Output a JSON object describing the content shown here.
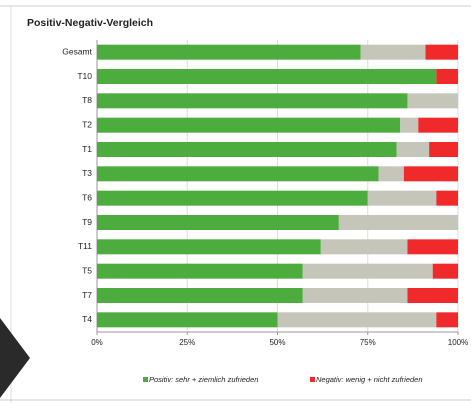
{
  "chart_data": {
    "type": "stacked-hbar",
    "title": "Positiv-Negativ-Vergleich",
    "categories": [
      "Gesamt",
      "T10",
      "T8",
      "T2",
      "T1",
      "T3",
      "T6",
      "T9",
      "T11",
      "T5",
      "T7",
      "T4"
    ],
    "series": [
      {
        "name": "Positiv: sehr + ziemlich zufrieden",
        "color": "#4cad3e",
        "values": [
          73,
          94,
          86,
          84,
          83,
          78,
          75,
          67,
          62,
          57,
          57,
          50
        ]
      },
      {
        "color": "#c5c5b9",
        "values": [
          18,
          0,
          14,
          5,
          9,
          7,
          19,
          33,
          24,
          36,
          29,
          44
        ]
      },
      {
        "name": "Negativ: wenig + nicht zufrieden",
        "color": "#f02a2a",
        "values": [
          9,
          6,
          0,
          11,
          8,
          15,
          6,
          0,
          14,
          7,
          14,
          6
        ]
      }
    ],
    "xlim": [
      0,
      100
    ],
    "xticks": [
      {
        "value": 0,
        "label": "0%"
      },
      {
        "value": 25,
        "label": "25%"
      },
      {
        "value": 50,
        "label": "50%"
      },
      {
        "value": 75,
        "label": "75%"
      },
      {
        "value": 100,
        "label": "100%"
      }
    ],
    "grid": true
  }
}
